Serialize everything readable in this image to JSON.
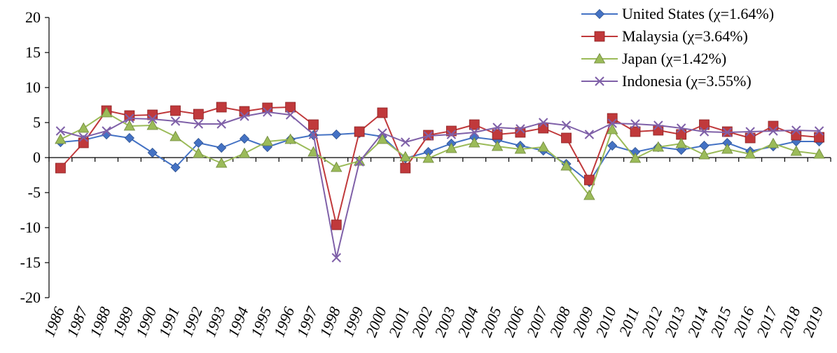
{
  "chart_data": {
    "type": "line",
    "title": "",
    "xlabel": "",
    "ylabel": "",
    "ylim": [
      -20,
      20
    ],
    "yticks": [
      20,
      15,
      10,
      5,
      0,
      -5,
      -10,
      -15,
      -20
    ],
    "grid": false,
    "legend_position": "top-right",
    "categories": [
      "1986",
      "1987",
      "1988",
      "1989",
      "1990",
      "1991",
      "1992",
      "1993",
      "1994",
      "1995",
      "1996",
      "1997",
      "1998",
      "1999",
      "2000",
      "2001",
      "2002",
      "2003",
      "2004",
      "2005",
      "2006",
      "2007",
      "2008",
      "2009",
      "2010",
      "2011",
      "2012",
      "2013",
      "2014",
      "2015",
      "2016",
      "2017",
      "2018",
      "2019"
    ],
    "series": [
      {
        "name": "United States (χ=1.64%)",
        "color": "#4472C4",
        "marker": "diamond",
        "values": [
          2.2,
          2.5,
          3.3,
          2.8,
          0.7,
          -1.4,
          2.1,
          1.4,
          2.7,
          1.5,
          2.6,
          3.2,
          3.3,
          3.5,
          3.0,
          -0.1,
          0.8,
          2.0,
          2.9,
          2.5,
          1.7,
          1.0,
          -0.9,
          -3.5,
          1.7,
          0.8,
          1.5,
          1.1,
          1.7,
          2.1,
          0.9,
          1.6,
          2.3,
          2.3
        ]
      },
      {
        "name": "Malaysia (χ=3.64%)",
        "color": "#C0393B",
        "marker": "square",
        "values": [
          -1.5,
          2.1,
          6.7,
          6.0,
          6.1,
          6.7,
          6.2,
          7.2,
          6.6,
          7.1,
          7.2,
          4.7,
          -9.6,
          3.7,
          6.4,
          -1.5,
          3.2,
          3.8,
          4.7,
          3.3,
          3.6,
          4.2,
          2.8,
          -3.2,
          5.6,
          3.7,
          3.9,
          3.3,
          4.7,
          3.7,
          2.8,
          4.5,
          3.2,
          2.9
        ]
      },
      {
        "name": "Japan (χ=1.42%)",
        "color": "#9BBB59",
        "marker": "triangle",
        "values": [
          2.6,
          4.2,
          6.4,
          4.5,
          4.6,
          3.0,
          0.6,
          -0.8,
          0.6,
          2.3,
          2.6,
          0.8,
          -1.4,
          -0.5,
          2.6,
          0.1,
          -0.1,
          1.3,
          2.1,
          1.6,
          1.2,
          1.5,
          -1.2,
          -5.4,
          4.0,
          -0.1,
          1.5,
          2.0,
          0.4,
          1.2,
          0.5,
          2.0,
          0.9,
          0.5
        ]
      },
      {
        "name": "Indonesia (χ=3.55%)",
        "color": "#7F60A8",
        "marker": "x",
        "values": [
          3.8,
          2.9,
          3.8,
          5.6,
          5.5,
          5.2,
          4.8,
          4.8,
          5.9,
          6.5,
          6.1,
          3.3,
          -14.3,
          -0.6,
          3.5,
          2.2,
          3.1,
          3.3,
          3.6,
          4.3,
          4.1,
          5.0,
          4.6,
          3.3,
          4.9,
          4.8,
          4.6,
          4.2,
          3.7,
          3.6,
          3.7,
          3.8,
          3.9,
          3.8
        ]
      }
    ]
  }
}
